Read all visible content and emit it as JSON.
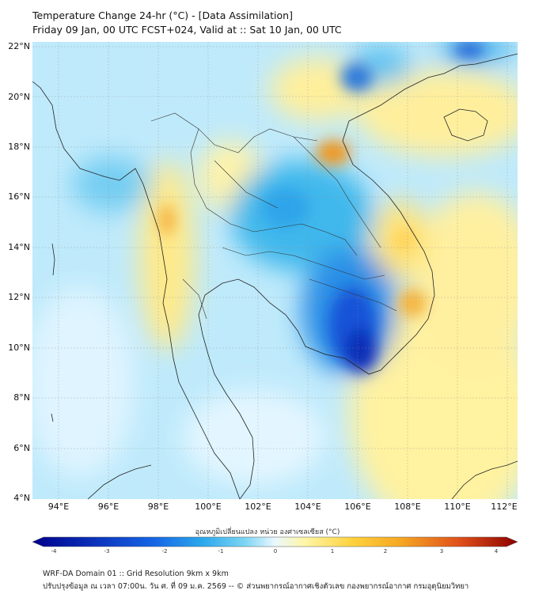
{
  "header": {
    "title_line1": "Temperature Change 24-hr (°C) - [Data Assimilation]",
    "title_line2": "Friday 09 Jan, 00 UTC FCST+024, Valid at :: Sat 10 Jan, 00 UTC"
  },
  "map": {
    "lat_labels": [
      "22°N",
      "20°N",
      "18°N",
      "16°N",
      "14°N",
      "12°N",
      "10°N",
      "8°N",
      "6°N",
      "4°N"
    ],
    "lon_labels": [
      "94°E",
      "96°E",
      "98°E",
      "100°E",
      "102°E",
      "104°E",
      "106°E",
      "108°E",
      "110°E",
      "112°E"
    ],
    "lat_range": [
      4,
      22.2
    ],
    "lon_range": [
      93,
      112.4
    ],
    "field_description": "24-hr temperature change; blue = cooling, orange = warming"
  },
  "colorbar": {
    "title": "อุณหภูมิเปลี่ยนแปลง หน่วย องศาเซลเซียส (°C)",
    "ticks": [
      "-4",
      "-3",
      "-2",
      "-1",
      "0",
      "1",
      "2",
      "3",
      "4"
    ],
    "range": [
      -4,
      4
    ],
    "colors": {
      "min": "#00008b",
      "neg_mid": "#1565e6",
      "neg_light": "#3fc4ee",
      "near_zero": "#eaf8ff",
      "pos_light": "#fff6a8",
      "pos_mid": "#ffd23c",
      "pos_strong": "#f08a10",
      "max": "#8b0000"
    }
  },
  "footer": {
    "line1": "WRF-DA Domain 01 :: Grid Resolution 9km x 9km",
    "line2": "ปรับปรุงข้อมูล ณ เวลา 07:00น. วัน ศ. ที่ 09 ม.ค. 2569 -- © ส่วนพยากรณ์อากาศเชิงตัวเลข กองพยากรณ์อากาศ กรมอุตุนิยมวิทยา"
  }
}
